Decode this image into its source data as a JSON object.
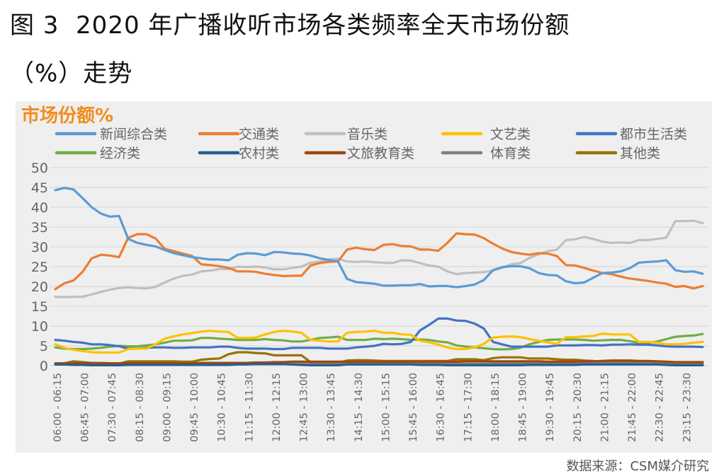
{
  "figure_title_line1": "图 3  2020 年广播收听市场各类频率全天市场份额",
  "figure_title_line2": "（%）走势",
  "source": "数据来源：CSM媒介研究",
  "chart_data": {
    "type": "line",
    "title": "市场份额%",
    "title_color": "#F08C1E",
    "ylim": [
      0,
      50
    ],
    "yticks": [
      0,
      5,
      10,
      15,
      20,
      25,
      30,
      35,
      40,
      45,
      50
    ],
    "grid": true,
    "legend_placement": "top",
    "xlabel": "",
    "ylabel": "市场份额%",
    "x_tick_every": 3,
    "x_tick_labels": [
      "06:00 - 06:15",
      "06:45 - 07:00",
      "07:30 - 07:45",
      "08:15 - 08:30",
      "09:00 - 09:15",
      "09:45 - 10:00",
      "10:30 - 10:45",
      "11:15 - 11:30",
      "12:00 - 12:15",
      "12:45 - 13:00",
      "13:30 - 13:45",
      "14:15 - 14:30",
      "15:00 - 15:15",
      "15:45 - 16:00",
      "16:30 - 16:45",
      "17:15 - 17:30",
      "18:00 - 18:15",
      "18:45 - 19:00",
      "19:30 - 19:45",
      "20:15 - 20:30",
      "21:00 - 21:15",
      "21:45 - 22:00",
      "22:30 - 22:45",
      "23:15 - 23:30"
    ],
    "series": [
      {
        "name": "新闻综合类",
        "color": "#5B9BD5",
        "values": [
          44.3,
          44.9,
          44.5,
          42.3,
          40,
          38.4,
          37.6,
          37.8,
          32,
          31,
          30.5,
          30.1,
          29.2,
          28.4,
          27.9,
          27.4,
          27.1,
          26.8,
          26.8,
          26.6,
          28,
          28.4,
          28.3,
          27.9,
          28.7,
          28.6,
          28.3,
          28.2,
          27.8,
          27.1,
          26.7,
          26.3,
          21.9,
          21.1,
          20.9,
          20.7,
          20.2,
          20.2,
          20.3,
          20.3,
          20.6,
          20,
          20.1,
          20.1,
          19.8,
          20.1,
          20.5,
          21.6,
          24.1,
          24.9,
          25.1,
          25.1,
          24.6,
          23.4,
          22.9,
          22.8,
          21.3,
          20.8,
          21,
          22.2,
          23.4,
          23.5,
          23.8,
          24.6,
          26,
          26.2,
          26.3,
          26.6,
          24.1,
          23.7,
          23.8,
          23.2
        ]
      },
      {
        "name": "交通类",
        "color": "#ED7D31",
        "values": [
          19.3,
          20.8,
          21.5,
          23.7,
          27.1,
          28,
          27.8,
          27.4,
          32.3,
          33.2,
          33.2,
          32.1,
          29.5,
          28.9,
          28.3,
          27.7,
          25.6,
          25.4,
          25.1,
          24.7,
          23.8,
          23.8,
          23.7,
          23.2,
          22.9,
          22.6,
          22.7,
          22.7,
          25.3,
          25.9,
          26.2,
          26.3,
          29.3,
          29.8,
          29.4,
          29.2,
          30.5,
          30.7,
          30.2,
          30.1,
          29.3,
          29.3,
          29,
          31,
          33.4,
          33.2,
          33.1,
          32.2,
          30.8,
          29.6,
          28.7,
          28.3,
          28,
          28.4,
          28.3,
          27.7,
          25.4,
          25.3,
          24.7,
          24,
          23.4,
          23.1,
          22.5,
          22,
          21.7,
          21.4,
          21,
          20.7,
          19.9,
          20.1,
          19.5,
          20.1
        ]
      },
      {
        "name": "音乐类",
        "color": "#BFBFBF",
        "values": [
          17.4,
          17.3,
          17.4,
          17.4,
          18,
          18.6,
          19.2,
          19.6,
          19.8,
          19.6,
          19.5,
          19.9,
          21,
          22,
          22.7,
          23,
          23.8,
          24,
          24.4,
          24.4,
          25,
          24.9,
          25,
          24.8,
          24.3,
          24.3,
          24.7,
          25,
          26,
          26.3,
          26.8,
          27,
          26.3,
          26.2,
          26.3,
          26.1,
          26,
          25.9,
          26.6,
          26.5,
          25.9,
          25.3,
          25,
          23.8,
          23.1,
          23.4,
          23.5,
          23.6,
          24,
          24.7,
          25.6,
          25.9,
          27.2,
          28.1,
          28.9,
          29.3,
          31.7,
          31.9,
          32.5,
          32,
          31.3,
          31,
          31.1,
          31,
          31.7,
          31.7,
          32,
          32.3,
          36.5,
          36.5,
          36.6,
          36
        ]
      },
      {
        "name": "文艺类",
        "color": "#FFC000",
        "values": [
          5.4,
          4.5,
          4,
          3.7,
          3.4,
          3.3,
          3.3,
          3.3,
          4.2,
          4.3,
          4.3,
          5.4,
          6.8,
          7.4,
          7.9,
          8.2,
          8.6,
          8.8,
          8.6,
          8.5,
          7,
          7,
          7.1,
          7.9,
          8.5,
          8.8,
          8.6,
          8.3,
          6.5,
          6.3,
          6.1,
          6.1,
          8.3,
          8.5,
          8.6,
          8.8,
          8.3,
          8.3,
          7.9,
          7.8,
          6.3,
          5.9,
          5.3,
          4.6,
          4.2,
          4.2,
          4.6,
          5.5,
          7.1,
          7.3,
          7.4,
          7.2,
          6.7,
          6.3,
          5.9,
          5.5,
          7.2,
          7.2,
          7.4,
          7.5,
          8.1,
          7.9,
          7.9,
          7.9,
          6,
          6,
          5.8,
          5.4,
          5.4,
          5.5,
          5.8,
          6
        ]
      },
      {
        "name": "都市生活类",
        "color": "#4472C4",
        "values": [
          6.5,
          6.3,
          6,
          5.8,
          5.4,
          5.4,
          5.2,
          4.9,
          4.3,
          4.3,
          4.5,
          4.6,
          4.6,
          4.5,
          4.5,
          4.6,
          4.6,
          4.6,
          4.8,
          4.8,
          4.5,
          4.3,
          4.3,
          4.3,
          4.2,
          4.2,
          4.5,
          4.5,
          4.5,
          4.5,
          4.3,
          4.3,
          4.3,
          4.6,
          4.8,
          5,
          5.5,
          5.4,
          5.5,
          6,
          8.9,
          10.3,
          11.9,
          11.9,
          11.4,
          11.3,
          10.6,
          9.4,
          6,
          5.4,
          4.8,
          4.8,
          4.8,
          4.8,
          4.8,
          5.1,
          5.1,
          5.1,
          5.2,
          5.2,
          5.1,
          5.3,
          5.3,
          5.4,
          5.3,
          5.3,
          5.1,
          4.9,
          4.8,
          4.8,
          4.8,
          4.7
        ]
      },
      {
        "name": "经济类",
        "color": "#70AD47",
        "values": [
          4.6,
          4.3,
          4.2,
          4.2,
          4.3,
          4.5,
          4.8,
          5,
          4.9,
          4.9,
          5.1,
          5.4,
          5.8,
          6.3,
          6.3,
          6.4,
          7,
          7,
          6.8,
          6.7,
          6.5,
          6.5,
          6.5,
          6.7,
          6.5,
          6.4,
          6.1,
          6.1,
          6.5,
          7,
          7.1,
          7.3,
          6.5,
          6.5,
          6.5,
          6.8,
          6.7,
          6.8,
          6.7,
          6.5,
          6.6,
          6.5,
          6.1,
          5.9,
          5.1,
          4.8,
          4.6,
          4.4,
          4.2,
          4.1,
          4.2,
          4.5,
          5.4,
          6,
          6.5,
          6.6,
          6.6,
          6.6,
          6.5,
          6.3,
          6.4,
          6.5,
          6.5,
          6.2,
          5.7,
          5.7,
          6.1,
          6.7,
          7.3,
          7.5,
          7.6,
          8
        ]
      },
      {
        "name": "农村类",
        "color": "#255E91",
        "values": [
          0.3,
          0.3,
          0.2,
          0.2,
          0.1,
          0.1,
          0.1,
          0.1,
          0.2,
          0.2,
          0.2,
          0.2,
          0.2,
          0.2,
          0.2,
          0.2,
          0.2,
          0.2,
          0.2,
          0.2,
          0.3,
          0.3,
          0.4,
          0.4,
          0.4,
          0.4,
          0.3,
          0.2,
          0.1,
          0.1,
          0.1,
          0.1,
          0.3,
          0.3,
          0.3,
          0.3,
          0.3,
          0.3,
          0.3,
          0.3,
          0.2,
          0.2,
          0.2,
          0.1,
          0.1,
          0.1,
          0.1,
          0.1,
          0.1,
          0.1,
          0.1,
          0.1,
          0.2,
          0.2,
          0.2,
          0.2,
          0.2,
          0.2,
          0.3,
          0.3,
          0.3,
          0.3,
          0.3,
          0.3,
          0.3,
          0.3,
          0.3,
          0.2,
          0.1,
          0.1,
          0.1,
          0.1
        ]
      },
      {
        "name": "文旅教育类",
        "color": "#9E480E",
        "values": [
          0.5,
          0.5,
          0.6,
          0.6,
          0.6,
          0.6,
          0.6,
          0.6,
          0.6,
          0.6,
          0.6,
          0.6,
          0.6,
          0.6,
          0.6,
          0.6,
          0.7,
          0.7,
          0.7,
          0.7,
          0.7,
          0.7,
          0.8,
          0.8,
          0.9,
          0.9,
          1,
          1,
          1,
          1,
          1,
          1,
          1,
          1,
          1,
          1,
          1,
          1,
          1,
          1,
          1,
          1,
          1,
          1,
          1,
          1.1,
          1.1,
          1.1,
          1.1,
          1.1,
          1.1,
          1.1,
          1.1,
          1.1,
          1,
          1,
          1,
          1,
          1.1,
          1.1,
          1.2,
          1.3,
          1.3,
          1.3,
          1.2,
          1.2,
          1.1,
          1,
          0.9,
          0.9,
          0.9,
          0.9
        ]
      },
      {
        "name": "体育类",
        "color": "#7F7F7F",
        "values": [
          0.3,
          0.3,
          0.3,
          0.3,
          0.3,
          0.3,
          0.3,
          0.3,
          0.4,
          0.4,
          0.4,
          0.4,
          0.4,
          0.4,
          0.4,
          0.4,
          0.4,
          0.4,
          0.4,
          0.4,
          0.4,
          0.4,
          0.4,
          0.4,
          0.4,
          0.4,
          0.4,
          0.4,
          0.4,
          0.4,
          0.4,
          0.4,
          0.5,
          0.5,
          0.5,
          0.5,
          0.5,
          0.5,
          0.5,
          0.5,
          0.5,
          0.5,
          0.5,
          0.5,
          0.5,
          0.5,
          0.5,
          0.5,
          0.6,
          0.6,
          0.6,
          0.6,
          0.6,
          0.6,
          0.6,
          0.6,
          0.6,
          0.6,
          0.6,
          0.6,
          0.6,
          0.6,
          0.6,
          0.6,
          0.6,
          0.6,
          0.6,
          0.5,
          0.5,
          0.5,
          0.5,
          0.5
        ]
      },
      {
        "name": "其他类",
        "color": "#997300",
        "values": [
          0.6,
          0.6,
          1.1,
          0.9,
          0.7,
          0.7,
          0.6,
          0.5,
          1.1,
          1.1,
          1.1,
          1.1,
          1.1,
          1.1,
          1,
          1,
          1.5,
          1.7,
          1.8,
          2.9,
          3.4,
          3.4,
          3.2,
          3.1,
          2.6,
          2.6,
          2.6,
          2.6,
          0.9,
          0.8,
          0.7,
          0.7,
          1.3,
          1.4,
          1.4,
          1.3,
          1.2,
          1.2,
          1.2,
          1.2,
          1.2,
          1.2,
          1.2,
          1.2,
          1.6,
          1.6,
          1.6,
          1.4,
          1.9,
          2.1,
          2.1,
          2.1,
          1.8,
          1.8,
          1.8,
          1.6,
          1.5,
          1.5,
          1.3,
          1.2,
          0.9,
          0.9,
          0.9,
          0.8,
          0.8,
          0.8,
          0.8,
          0.8,
          0.8,
          0.7,
          0.7,
          0.7
        ]
      }
    ]
  }
}
